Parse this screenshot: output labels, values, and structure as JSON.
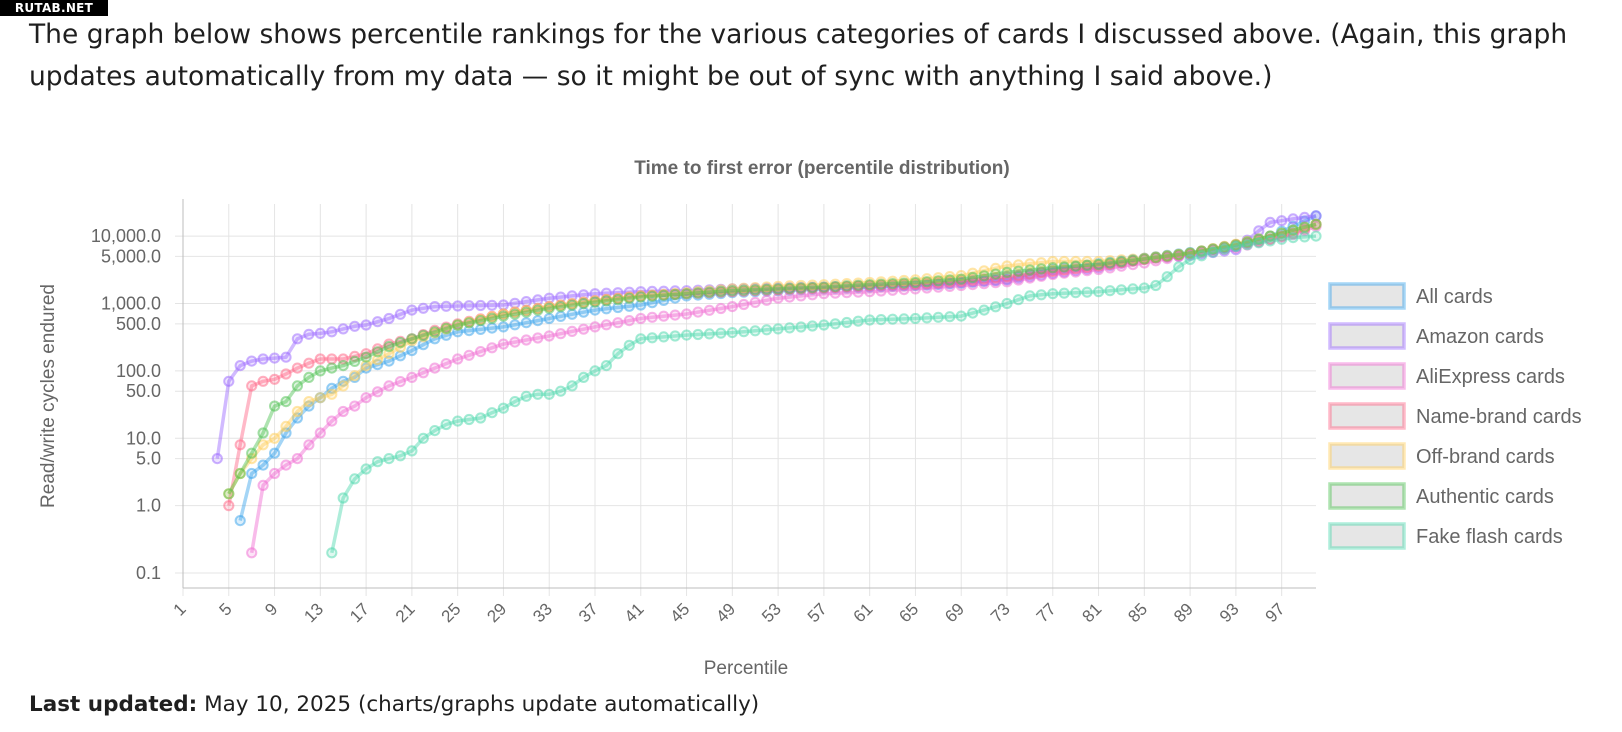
{
  "watermark": "RUTAB.NET",
  "intro_text": "The graph below shows percentile rankings for the various categories of cards I discussed above. (Again, this graph updates automatically from my data — so it might be out of sync with anything I said above.)",
  "footer": {
    "label": "Last updated:",
    "date": "May 10, 2025",
    "note": "(charts/graphs update automatically)"
  },
  "chart_data": {
    "type": "line",
    "title": "Time to first error (percentile distribution)",
    "xlabel": "Percentile",
    "ylabel": "Read/write cycles endured",
    "y_scale": "log",
    "ylim": [
      0.06,
      30000
    ],
    "xlim": [
      1,
      100
    ],
    "x_ticks": [
      1,
      5,
      9,
      13,
      17,
      21,
      25,
      29,
      33,
      37,
      41,
      45,
      49,
      53,
      57,
      61,
      65,
      69,
      73,
      77,
      81,
      85,
      89,
      93,
      97
    ],
    "y_ticks": [
      {
        "value": 10000,
        "label": "10,000.0"
      },
      {
        "value": 5000,
        "label": "5,000.0"
      },
      {
        "value": 1000,
        "label": "1,000.0"
      },
      {
        "value": 500,
        "label": "500.0"
      },
      {
        "value": 100,
        "label": "100.0"
      },
      {
        "value": 50,
        "label": "50.0"
      },
      {
        "value": 10,
        "label": "10.0"
      },
      {
        "value": 5,
        "label": "5.0"
      },
      {
        "value": 1,
        "label": "1.0"
      },
      {
        "value": 0.1,
        "label": "0.1"
      }
    ],
    "grid": true,
    "legend_position": "right",
    "series": [
      {
        "name": "All cards",
        "color": "#36a2eb",
        "points": [
          [
            6,
            0.6
          ],
          [
            7,
            3
          ],
          [
            8,
            4
          ],
          [
            9,
            6
          ],
          [
            10,
            12
          ],
          [
            11,
            20
          ],
          [
            12,
            30
          ],
          [
            13,
            40
          ],
          [
            14,
            55
          ],
          [
            15,
            70
          ],
          [
            16,
            80
          ],
          [
            17,
            110
          ],
          [
            19,
            140
          ],
          [
            21,
            200
          ],
          [
            23,
            300
          ],
          [
            25,
            380
          ],
          [
            29,
            450
          ],
          [
            33,
            600
          ],
          [
            37,
            800
          ],
          [
            41,
            950
          ],
          [
            45,
            1300
          ],
          [
            49,
            1450
          ],
          [
            53,
            1550
          ],
          [
            57,
            1650
          ],
          [
            61,
            1750
          ],
          [
            65,
            1850
          ],
          [
            69,
            2000
          ],
          [
            73,
            2300
          ],
          [
            77,
            3200
          ],
          [
            81,
            3900
          ],
          [
            85,
            4700
          ],
          [
            89,
            5700
          ],
          [
            93,
            7000
          ],
          [
            96,
            10000
          ],
          [
            98,
            14000
          ],
          [
            100,
            20000
          ]
        ]
      },
      {
        "name": "Amazon cards",
        "color": "#9966ff",
        "points": [
          [
            4,
            5
          ],
          [
            5,
            70
          ],
          [
            6,
            120
          ],
          [
            7,
            140
          ],
          [
            8,
            150
          ],
          [
            9,
            155
          ],
          [
            10,
            160
          ],
          [
            11,
            300
          ],
          [
            12,
            350
          ],
          [
            13,
            360
          ],
          [
            14,
            380
          ],
          [
            15,
            420
          ],
          [
            16,
            460
          ],
          [
            17,
            480
          ],
          [
            19,
            600
          ],
          [
            21,
            800
          ],
          [
            23,
            900
          ],
          [
            25,
            920
          ],
          [
            29,
            950
          ],
          [
            33,
            1200
          ],
          [
            37,
            1400
          ],
          [
            41,
            1500
          ],
          [
            45,
            1550
          ],
          [
            49,
            1650
          ],
          [
            53,
            1700
          ],
          [
            57,
            1750
          ],
          [
            61,
            1800
          ],
          [
            65,
            1900
          ],
          [
            69,
            2050
          ],
          [
            73,
            2250
          ],
          [
            77,
            2800
          ],
          [
            81,
            3400
          ],
          [
            85,
            4600
          ],
          [
            89,
            5200
          ],
          [
            93,
            6300
          ],
          [
            95,
            12000
          ],
          [
            96,
            16000
          ],
          [
            98,
            18000
          ],
          [
            100,
            20000
          ]
        ]
      },
      {
        "name": "AliExpress cards",
        "color": "#f069d1",
        "points": [
          [
            7,
            0.2
          ],
          [
            8,
            2
          ],
          [
            9,
            3
          ],
          [
            10,
            4
          ],
          [
            11,
            5
          ],
          [
            12,
            8
          ],
          [
            13,
            12
          ],
          [
            14,
            18
          ],
          [
            15,
            25
          ],
          [
            16,
            30
          ],
          [
            17,
            40
          ],
          [
            19,
            60
          ],
          [
            21,
            80
          ],
          [
            23,
            110
          ],
          [
            25,
            150
          ],
          [
            29,
            250
          ],
          [
            33,
            330
          ],
          [
            37,
            450
          ],
          [
            41,
            600
          ],
          [
            45,
            700
          ],
          [
            49,
            900
          ],
          [
            53,
            1200
          ],
          [
            57,
            1400
          ],
          [
            61,
            1500
          ],
          [
            65,
            1650
          ],
          [
            69,
            1850
          ],
          [
            73,
            2100
          ],
          [
            77,
            2700
          ],
          [
            81,
            3200
          ],
          [
            85,
            4000
          ],
          [
            89,
            5400
          ],
          [
            93,
            6700
          ],
          [
            96,
            9000
          ],
          [
            98,
            10500
          ],
          [
            100,
            14000
          ]
        ]
      },
      {
        "name": "Name-brand cards",
        "color": "#ff6384",
        "points": [
          [
            5,
            1
          ],
          [
            6,
            8
          ],
          [
            7,
            60
          ],
          [
            8,
            70
          ],
          [
            9,
            75
          ],
          [
            10,
            90
          ],
          [
            11,
            110
          ],
          [
            12,
            130
          ],
          [
            13,
            150
          ],
          [
            15,
            150
          ],
          [
            17,
            180
          ],
          [
            19,
            250
          ],
          [
            21,
            300
          ],
          [
            23,
            400
          ],
          [
            25,
            500
          ],
          [
            29,
            700
          ],
          [
            33,
            900
          ],
          [
            37,
            1100
          ],
          [
            41,
            1300
          ],
          [
            45,
            1400
          ],
          [
            49,
            1500
          ],
          [
            53,
            1600
          ],
          [
            57,
            1700
          ],
          [
            61,
            1850
          ],
          [
            65,
            1950
          ],
          [
            69,
            2150
          ],
          [
            73,
            2500
          ],
          [
            77,
            3000
          ],
          [
            81,
            3600
          ],
          [
            85,
            4500
          ],
          [
            89,
            5500
          ],
          [
            93,
            7500
          ],
          [
            96,
            9000
          ],
          [
            98,
            11000
          ],
          [
            100,
            15000
          ]
        ]
      },
      {
        "name": "Off-brand cards",
        "color": "#ffcd56",
        "points": [
          [
            5,
            1.5
          ],
          [
            6,
            3
          ],
          [
            7,
            5
          ],
          [
            8,
            8
          ],
          [
            9,
            10
          ],
          [
            10,
            15
          ],
          [
            11,
            25
          ],
          [
            12,
            35
          ],
          [
            13,
            40
          ],
          [
            14,
            45
          ],
          [
            15,
            60
          ],
          [
            17,
            120
          ],
          [
            19,
            180
          ],
          [
            21,
            280
          ],
          [
            25,
            480
          ],
          [
            29,
            700
          ],
          [
            33,
            900
          ],
          [
            37,
            1100
          ],
          [
            41,
            1300
          ],
          [
            45,
            1450
          ],
          [
            49,
            1650
          ],
          [
            53,
            1800
          ],
          [
            57,
            1900
          ],
          [
            61,
            2050
          ],
          [
            65,
            2250
          ],
          [
            69,
            2600
          ],
          [
            73,
            3600
          ],
          [
            77,
            4200
          ],
          [
            81,
            4200
          ],
          [
            85,
            4700
          ],
          [
            89,
            5600
          ],
          [
            93,
            7600
          ],
          [
            96,
            10000
          ],
          [
            100,
            15000
          ]
        ]
      },
      {
        "name": "Authentic cards",
        "color": "#4bc050",
        "points": [
          [
            5,
            1.5
          ],
          [
            6,
            3
          ],
          [
            7,
            6
          ],
          [
            8,
            12
          ],
          [
            9,
            30
          ],
          [
            10,
            35
          ],
          [
            11,
            60
          ],
          [
            12,
            80
          ],
          [
            13,
            100
          ],
          [
            14,
            110
          ],
          [
            15,
            120
          ],
          [
            17,
            160
          ],
          [
            19,
            230
          ],
          [
            21,
            300
          ],
          [
            25,
            480
          ],
          [
            29,
            650
          ],
          [
            33,
            850
          ],
          [
            37,
            1050
          ],
          [
            41,
            1250
          ],
          [
            45,
            1400
          ],
          [
            49,
            1550
          ],
          [
            53,
            1650
          ],
          [
            57,
            1750
          ],
          [
            61,
            1900
          ],
          [
            65,
            2050
          ],
          [
            69,
            2300
          ],
          [
            73,
            2900
          ],
          [
            77,
            3400
          ],
          [
            81,
            3800
          ],
          [
            85,
            4600
          ],
          [
            89,
            5600
          ],
          [
            93,
            7400
          ],
          [
            96,
            10000
          ],
          [
            100,
            15000
          ]
        ]
      },
      {
        "name": "Fake flash cards",
        "color": "#4bd8ac",
        "points": [
          [
            14,
            0.2
          ],
          [
            15,
            1.3
          ],
          [
            16,
            2.5
          ],
          [
            17,
            3.5
          ],
          [
            18,
            4.5
          ],
          [
            19,
            5
          ],
          [
            20,
            5.5
          ],
          [
            21,
            6.5
          ],
          [
            22,
            10
          ],
          [
            23,
            13
          ],
          [
            24,
            16
          ],
          [
            25,
            18
          ],
          [
            26,
            19
          ],
          [
            27,
            20
          ],
          [
            28,
            24
          ],
          [
            29,
            28
          ],
          [
            30,
            35
          ],
          [
            31,
            42
          ],
          [
            32,
            45
          ],
          [
            33,
            45
          ],
          [
            34,
            50
          ],
          [
            35,
            60
          ],
          [
            36,
            80
          ],
          [
            37,
            100
          ],
          [
            38,
            120
          ],
          [
            39,
            180
          ],
          [
            40,
            240
          ],
          [
            41,
            300
          ],
          [
            43,
            320
          ],
          [
            45,
            340
          ],
          [
            49,
            370
          ],
          [
            53,
            420
          ],
          [
            57,
            480
          ],
          [
            61,
            570
          ],
          [
            65,
            600
          ],
          [
            69,
            650
          ],
          [
            71,
            800
          ],
          [
            73,
            1000
          ],
          [
            75,
            1300
          ],
          [
            77,
            1400
          ],
          [
            81,
            1500
          ],
          [
            85,
            1700
          ],
          [
            86,
            1850
          ],
          [
            87,
            2500
          ],
          [
            88,
            3500
          ],
          [
            89,
            4500
          ],
          [
            91,
            5800
          ],
          [
            93,
            7000
          ],
          [
            96,
            8500
          ],
          [
            98,
            9500
          ],
          [
            100,
            10000
          ]
        ]
      }
    ]
  }
}
